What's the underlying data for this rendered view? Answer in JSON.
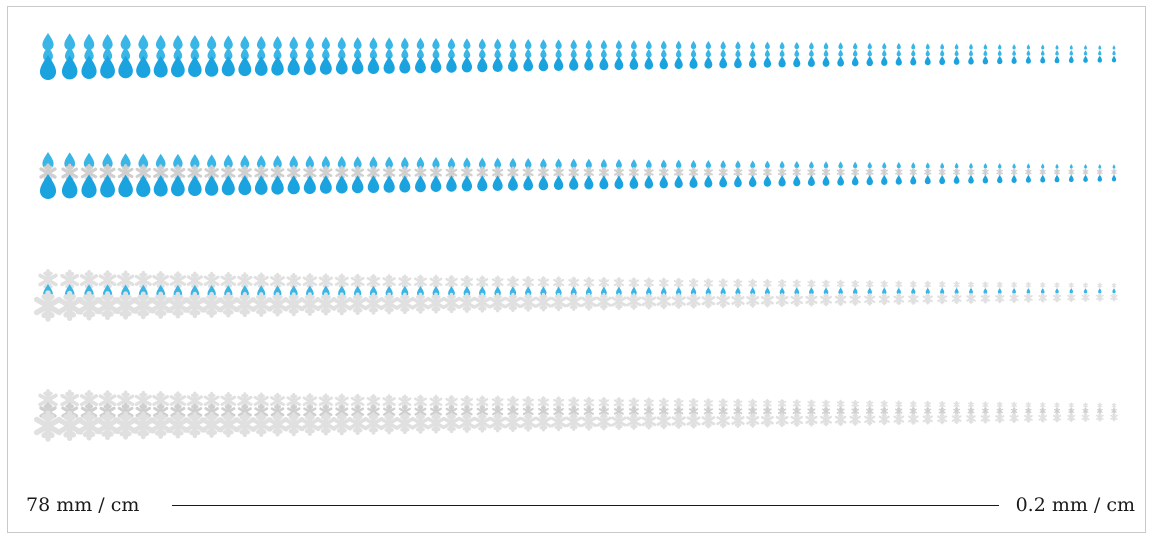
{
  "scale": {
    "left_label": "78 mm / cm",
    "right_label": "0.2 mm / cm"
  },
  "colors": {
    "rain": "#1aa3de",
    "rain_light": "#39b5e6",
    "snow": "#cfcfcf",
    "snow_light": "#e0e0e0",
    "line": "#1a1a1a",
    "border": "#c9c9c9"
  },
  "strips": [
    {
      "name": "rain-strip",
      "layers": [
        "rain-icon",
        "rain-icon",
        "rain-icon"
      ]
    },
    {
      "name": "rain-snow-strip",
      "layers": [
        "rain-icon",
        "snowflake-icon",
        "rain-icon"
      ]
    },
    {
      "name": "snow-rain-strip",
      "layers": [
        "snowflake-icon",
        "rain-icon",
        "snowflake-icon"
      ]
    },
    {
      "name": "snow-strip",
      "layers": [
        "snowflake-icon",
        "snowflake-icon",
        "snowflake-icon"
      ]
    }
  ]
}
